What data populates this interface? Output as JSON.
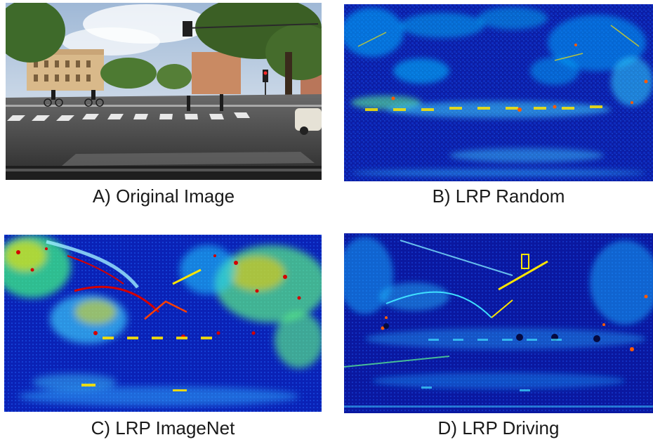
{
  "figure": {
    "panels": [
      {
        "id": "A",
        "caption": "A) Original Image"
      },
      {
        "id": "B",
        "caption": "B) LRP Random"
      },
      {
        "id": "C",
        "caption": "C) LRP ImageNet"
      },
      {
        "id": "D",
        "caption": "D) LRP Driving"
      }
    ]
  },
  "colors": {
    "heat_low": "#0a1aa8",
    "heat_mid": "#00c8ff",
    "heat_high": "#ffe600",
    "heat_max": "#d40000",
    "sky": "#dfe8f0",
    "road": "#3b3b3b",
    "foliage": "#3e6a2a"
  }
}
